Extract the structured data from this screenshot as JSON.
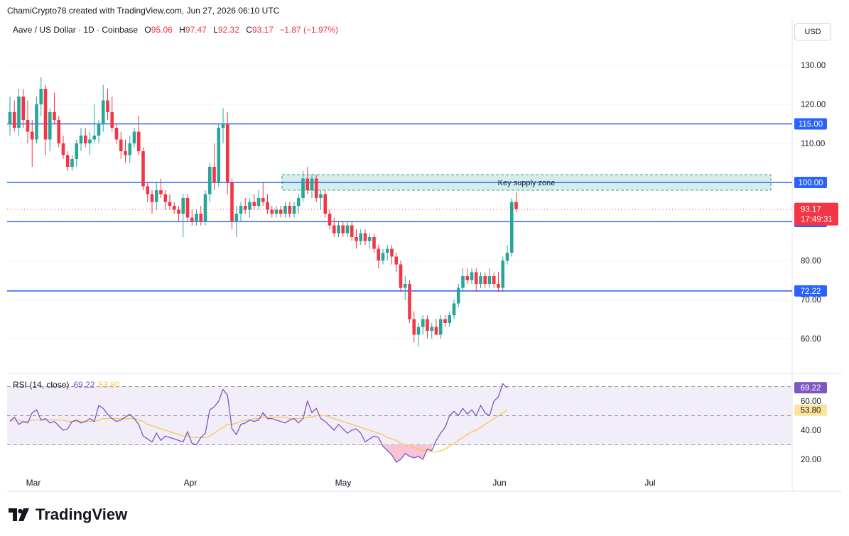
{
  "header": {
    "created_line": "ChamiCrypto78 created with TradingView.com, Jun 27, 2026 06:10 UTC"
  },
  "legend": {
    "symbol": "Aave / US Dollar · 1D · Coinbase",
    "open_label": "O",
    "open": "95.06",
    "high_label": "H",
    "high": "97.47",
    "low_label": "L",
    "low": "92.32",
    "close_label": "C",
    "close": "93.17",
    "change": "−1.87 (−1.97%)"
  },
  "currency_button": "USD",
  "brand": {
    "name": "TradingView",
    "logo_icon": "tradingview-logo-icon"
  },
  "colors": {
    "up": "#26a69a",
    "down": "#f23645",
    "level_line": "#2962ff",
    "zone_fill": "#b2dfdb",
    "zone_border": "#26a69a",
    "rsi_line": "#7e57c2",
    "rsi_ma": "#f9c74f",
    "rsi_band": "#ede7f6",
    "oversold_fill": "#f8bbd0"
  },
  "chart_data": [
    {
      "type": "candlestick",
      "symbol": "Aave / US Dollar",
      "interval": "1D",
      "exchange": "Coinbase",
      "y_ticks": [
        "130.00",
        "120.00",
        "110.00",
        "100.00",
        "90.00",
        "80.00",
        "70.00",
        "60.00"
      ],
      "ylim": [
        52,
        136
      ],
      "x_ticks": [
        "Mar",
        "Apr",
        "May",
        "Jun",
        "Jul"
      ],
      "last_price": "93.17",
      "countdown": "17:49:31",
      "horizontal_levels": [
        {
          "value": 115,
          "label": "115.00"
        },
        {
          "value": 100,
          "label": "100.00"
        },
        {
          "value": 90,
          "label": "90.00"
        },
        {
          "value": 72.22,
          "label": "72.22"
        }
      ],
      "zones": [
        {
          "label": "Key supply zone",
          "low": 98,
          "high": 102,
          "from_day": "Apr 19",
          "to_day": "Jul 24"
        }
      ],
      "candles": [
        {
          "o": 115,
          "h": 122,
          "l": 112,
          "c": 118
        },
        {
          "o": 118,
          "h": 121,
          "l": 113,
          "c": 114
        },
        {
          "o": 114,
          "h": 124,
          "l": 112,
          "c": 122
        },
        {
          "o": 122,
          "h": 124,
          "l": 114,
          "c": 116
        },
        {
          "o": 116,
          "h": 121,
          "l": 110,
          "c": 113
        },
        {
          "o": 113,
          "h": 116,
          "l": 104,
          "c": 111
        },
        {
          "o": 111,
          "h": 122,
          "l": 110,
          "c": 120
        },
        {
          "o": 120,
          "h": 127,
          "l": 117,
          "c": 124
        },
        {
          "o": 124,
          "h": 125,
          "l": 107,
          "c": 111
        },
        {
          "o": 111,
          "h": 119,
          "l": 108,
          "c": 118
        },
        {
          "o": 118,
          "h": 123,
          "l": 115,
          "c": 116
        },
        {
          "o": 116,
          "h": 117,
          "l": 109,
          "c": 110
        },
        {
          "o": 110,
          "h": 112,
          "l": 106,
          "c": 107
        },
        {
          "o": 107,
          "h": 108,
          "l": 103,
          "c": 104
        },
        {
          "o": 104,
          "h": 107,
          "l": 103,
          "c": 106
        },
        {
          "o": 106,
          "h": 111,
          "l": 104,
          "c": 110
        },
        {
          "o": 110,
          "h": 114,
          "l": 108,
          "c": 112
        },
        {
          "o": 112,
          "h": 114,
          "l": 109,
          "c": 110
        },
        {
          "o": 110,
          "h": 113,
          "l": 107,
          "c": 111
        },
        {
          "o": 111,
          "h": 120,
          "l": 110,
          "c": 112
        },
        {
          "o": 112,
          "h": 116,
          "l": 110,
          "c": 115
        },
        {
          "o": 115,
          "h": 125,
          "l": 113,
          "c": 121
        },
        {
          "o": 121,
          "h": 124,
          "l": 116,
          "c": 118
        },
        {
          "o": 118,
          "h": 122,
          "l": 113,
          "c": 114
        },
        {
          "o": 114,
          "h": 115,
          "l": 110,
          "c": 111
        },
        {
          "o": 111,
          "h": 113,
          "l": 106,
          "c": 108
        },
        {
          "o": 108,
          "h": 111,
          "l": 105,
          "c": 107
        },
        {
          "o": 107,
          "h": 112,
          "l": 105,
          "c": 110
        },
        {
          "o": 110,
          "h": 114,
          "l": 109,
          "c": 113
        },
        {
          "o": 113,
          "h": 117,
          "l": 107,
          "c": 108
        },
        {
          "o": 108,
          "h": 109,
          "l": 98,
          "c": 99
        },
        {
          "o": 99,
          "h": 100,
          "l": 95,
          "c": 97
        },
        {
          "o": 97,
          "h": 98,
          "l": 92,
          "c": 95
        },
        {
          "o": 95,
          "h": 100,
          "l": 93,
          "c": 98
        },
        {
          "o": 98,
          "h": 101,
          "l": 96,
          "c": 97
        },
        {
          "o": 97,
          "h": 98,
          "l": 93,
          "c": 95
        },
        {
          "o": 95,
          "h": 97,
          "l": 93,
          "c": 94
        },
        {
          "o": 94,
          "h": 95,
          "l": 92,
          "c": 93
        },
        {
          "o": 93,
          "h": 94,
          "l": 90,
          "c": 92
        },
        {
          "o": 92,
          "h": 97,
          "l": 86,
          "c": 96
        },
        {
          "o": 96,
          "h": 97,
          "l": 90,
          "c": 91
        },
        {
          "o": 91,
          "h": 93,
          "l": 89,
          "c": 90
        },
        {
          "o": 90,
          "h": 93,
          "l": 89,
          "c": 92
        },
        {
          "o": 92,
          "h": 94,
          "l": 89,
          "c": 90
        },
        {
          "o": 90,
          "h": 98,
          "l": 89,
          "c": 97
        },
        {
          "o": 97,
          "h": 105,
          "l": 95,
          "c": 104
        },
        {
          "o": 104,
          "h": 110,
          "l": 98,
          "c": 100
        },
        {
          "o": 100,
          "h": 115,
          "l": 99,
          "c": 114
        },
        {
          "o": 114,
          "h": 119,
          "l": 110,
          "c": 115
        },
        {
          "o": 115,
          "h": 118,
          "l": 97,
          "c": 100
        },
        {
          "o": 100,
          "h": 101,
          "l": 88,
          "c": 90
        },
        {
          "o": 90,
          "h": 94,
          "l": 86,
          "c": 92
        },
        {
          "o": 92,
          "h": 95,
          "l": 90,
          "c": 94
        },
        {
          "o": 94,
          "h": 96,
          "l": 92,
          "c": 93
        },
        {
          "o": 93,
          "h": 96,
          "l": 91,
          "c": 95
        },
        {
          "o": 95,
          "h": 97,
          "l": 93,
          "c": 94
        },
        {
          "o": 94,
          "h": 98,
          "l": 93,
          "c": 96
        },
        {
          "o": 96,
          "h": 100,
          "l": 94,
          "c": 95
        },
        {
          "o": 95,
          "h": 97,
          "l": 92,
          "c": 93
        },
        {
          "o": 93,
          "h": 94,
          "l": 91,
          "c": 92
        },
        {
          "o": 92,
          "h": 94,
          "l": 91,
          "c": 93
        },
        {
          "o": 93,
          "h": 94,
          "l": 91,
          "c": 92
        },
        {
          "o": 92,
          "h": 95,
          "l": 91,
          "c": 94
        },
        {
          "o": 94,
          "h": 95,
          "l": 91,
          "c": 92
        },
        {
          "o": 92,
          "h": 95,
          "l": 91,
          "c": 94
        },
        {
          "o": 94,
          "h": 97,
          "l": 92,
          "c": 96
        },
        {
          "o": 96,
          "h": 103,
          "l": 95,
          "c": 101
        },
        {
          "o": 101,
          "h": 104,
          "l": 97,
          "c": 98
        },
        {
          "o": 98,
          "h": 102,
          "l": 96,
          "c": 101
        },
        {
          "o": 101,
          "h": 102,
          "l": 95,
          "c": 96
        },
        {
          "o": 96,
          "h": 98,
          "l": 93,
          "c": 97
        },
        {
          "o": 97,
          "h": 98,
          "l": 91,
          "c": 92
        },
        {
          "o": 92,
          "h": 93,
          "l": 88,
          "c": 89
        },
        {
          "o": 89,
          "h": 91,
          "l": 86,
          "c": 87
        },
        {
          "o": 87,
          "h": 90,
          "l": 86,
          "c": 89
        },
        {
          "o": 89,
          "h": 90,
          "l": 86,
          "c": 87
        },
        {
          "o": 87,
          "h": 90,
          "l": 86,
          "c": 89
        },
        {
          "o": 89,
          "h": 90,
          "l": 85,
          "c": 86
        },
        {
          "o": 86,
          "h": 88,
          "l": 83,
          "c": 85
        },
        {
          "o": 85,
          "h": 88,
          "l": 84,
          "c": 87
        },
        {
          "o": 87,
          "h": 88,
          "l": 84,
          "c": 85
        },
        {
          "o": 85,
          "h": 87,
          "l": 83,
          "c": 86
        },
        {
          "o": 86,
          "h": 87,
          "l": 82,
          "c": 83
        },
        {
          "o": 83,
          "h": 84,
          "l": 78,
          "c": 80
        },
        {
          "o": 80,
          "h": 83,
          "l": 79,
          "c": 82
        },
        {
          "o": 82,
          "h": 84,
          "l": 80,
          "c": 83
        },
        {
          "o": 83,
          "h": 84,
          "l": 79,
          "c": 81
        },
        {
          "o": 81,
          "h": 82,
          "l": 77,
          "c": 79
        },
        {
          "o": 79,
          "h": 80,
          "l": 72,
          "c": 73
        },
        {
          "o": 73,
          "h": 76,
          "l": 70,
          "c": 74
        },
        {
          "o": 74,
          "h": 75,
          "l": 64,
          "c": 65
        },
        {
          "o": 65,
          "h": 67,
          "l": 59,
          "c": 61
        },
        {
          "o": 61,
          "h": 64,
          "l": 58,
          "c": 63
        },
        {
          "o": 63,
          "h": 66,
          "l": 61,
          "c": 65
        },
        {
          "o": 65,
          "h": 66,
          "l": 60,
          "c": 62
        },
        {
          "o": 62,
          "h": 64,
          "l": 60,
          "c": 63
        },
        {
          "o": 63,
          "h": 65,
          "l": 61,
          "c": 61
        },
        {
          "o": 61,
          "h": 66,
          "l": 60,
          "c": 65
        },
        {
          "o": 65,
          "h": 66,
          "l": 63,
          "c": 64
        },
        {
          "o": 64,
          "h": 67,
          "l": 63,
          "c": 66
        },
        {
          "o": 66,
          "h": 70,
          "l": 65,
          "c": 69
        },
        {
          "o": 69,
          "h": 74,
          "l": 68,
          "c": 73
        },
        {
          "o": 73,
          "h": 78,
          "l": 72,
          "c": 76
        },
        {
          "o": 76,
          "h": 78,
          "l": 74,
          "c": 75
        },
        {
          "o": 75,
          "h": 78,
          "l": 74,
          "c": 77
        },
        {
          "o": 77,
          "h": 78,
          "l": 72,
          "c": 74
        },
        {
          "o": 74,
          "h": 77,
          "l": 73,
          "c": 76
        },
        {
          "o": 76,
          "h": 77,
          "l": 73,
          "c": 74
        },
        {
          "o": 74,
          "h": 78,
          "l": 73,
          "c": 76
        },
        {
          "o": 76,
          "h": 77,
          "l": 73,
          "c": 74
        },
        {
          "o": 74,
          "h": 77,
          "l": 72,
          "c": 73
        },
        {
          "o": 73,
          "h": 81,
          "l": 72,
          "c": 80
        },
        {
          "o": 80,
          "h": 84,
          "l": 79,
          "c": 82
        },
        {
          "o": 82,
          "h": 96,
          "l": 81,
          "c": 95
        },
        {
          "o": 95,
          "h": 97.47,
          "l": 92.32,
          "c": 93.17
        }
      ]
    },
    {
      "type": "line",
      "title": "RSI (14, close)",
      "legend_values": [
        "69.22",
        "53.80"
      ],
      "y_ticks": [
        "60.00",
        "40.00",
        "20.00"
      ],
      "ylim": [
        10,
        76
      ],
      "bands": [
        70,
        50,
        30
      ],
      "last_rsi_label": "69.22",
      "last_ma_label": "53.80",
      "series": [
        {
          "key": "rsi",
          "values": [
            46,
            49,
            44,
            46,
            45,
            52,
            54,
            47,
            48,
            45,
            46,
            43,
            40,
            41,
            46,
            47,
            45,
            46,
            48,
            46,
            57,
            55,
            51,
            48,
            46,
            47,
            49,
            51,
            48,
            44,
            36,
            34,
            32,
            38,
            33,
            36,
            35,
            34,
            33,
            32,
            39,
            31,
            30,
            35,
            38,
            54,
            56,
            60,
            68,
            64,
            41,
            37,
            44,
            45,
            47,
            46,
            47,
            52,
            48,
            48,
            47,
            46,
            45,
            47,
            48,
            45,
            48,
            60,
            52,
            55,
            48,
            46,
            43,
            40,
            44,
            41,
            38,
            40,
            41,
            38,
            32,
            34,
            36,
            35,
            29,
            26,
            23,
            18,
            20,
            24,
            22,
            21,
            22,
            20,
            27,
            26,
            33,
            38,
            42,
            50,
            53,
            50,
            55,
            51,
            54,
            50,
            57,
            52,
            50,
            60,
            63,
            72,
            69
          ]
        },
        {
          "key": "ma",
          "values": [
            47,
            47,
            47,
            46,
            46,
            47,
            47,
            47,
            47,
            47,
            47,
            47,
            47,
            46,
            46,
            46,
            46,
            46,
            46,
            46,
            47,
            48,
            48,
            48,
            48,
            48,
            48,
            48,
            48,
            47,
            46,
            44,
            43,
            42,
            41,
            40,
            39,
            38,
            37,
            36,
            36,
            35,
            35,
            35,
            35,
            36,
            38,
            40,
            42,
            44,
            44,
            45,
            46,
            47,
            47,
            48,
            48,
            49,
            49,
            49,
            49,
            49,
            49,
            48,
            48,
            48,
            48,
            49,
            49,
            50,
            50,
            50,
            49,
            48,
            47,
            46,
            45,
            44,
            43,
            42,
            41,
            40,
            39,
            38,
            37,
            35,
            34,
            33,
            31,
            30,
            29,
            28,
            27,
            26,
            26,
            25,
            25,
            26,
            27,
            29,
            31,
            33,
            35,
            37,
            39,
            40,
            42,
            44,
            46,
            48,
            50,
            52,
            53.8
          ]
        }
      ]
    }
  ]
}
